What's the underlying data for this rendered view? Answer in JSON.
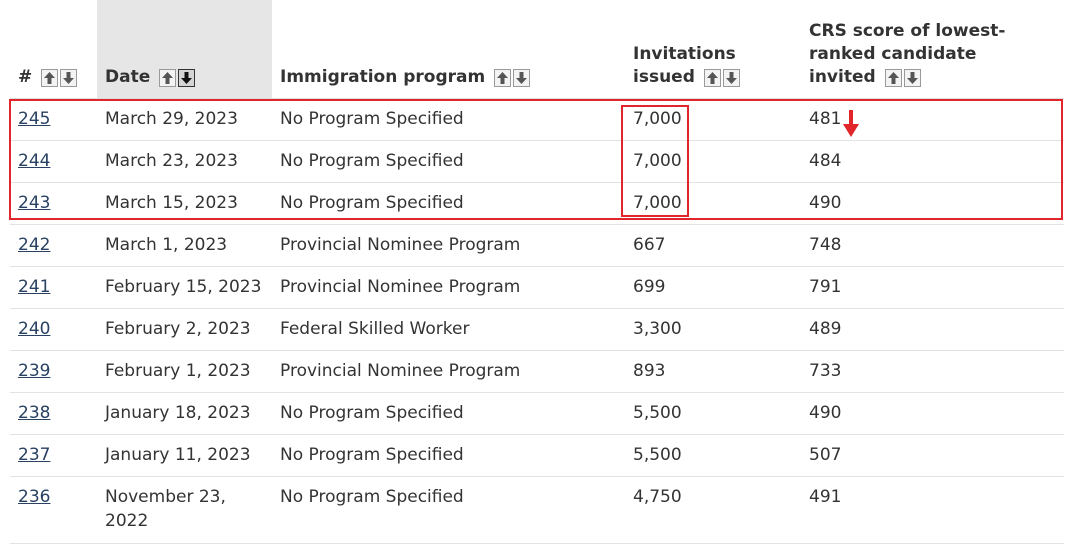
{
  "table": {
    "headers": {
      "num": "#",
      "date": "Date",
      "program": "Immigration program",
      "invitations_line1": "Invitations",
      "invitations_line2": "issued",
      "crs_line1": "CRS score of lowest-",
      "crs_line2": "ranked candidate",
      "crs_line3": "invited"
    },
    "sorted_column": "date",
    "sort_direction": "descending",
    "rows": [
      {
        "num": "245",
        "date": "March 29, 2023",
        "program": "No Program Specified",
        "invitations": "7,000",
        "crs": "481"
      },
      {
        "num": "244",
        "date": "March 23, 2023",
        "program": "No Program Specified",
        "invitations": "7,000",
        "crs": "484"
      },
      {
        "num": "243",
        "date": "March 15, 2023",
        "program": "No Program Specified",
        "invitations": "7,000",
        "crs": "490"
      },
      {
        "num": "242",
        "date": "March 1, 2023",
        "program": "Provincial Nominee Program",
        "invitations": "667",
        "crs": "748"
      },
      {
        "num": "241",
        "date": "February 15, 2023",
        "program": "Provincial Nominee Program",
        "invitations": "699",
        "crs": "791"
      },
      {
        "num": "240",
        "date": "February 2, 2023",
        "program": "Federal Skilled Worker",
        "invitations": "3,300",
        "crs": "489"
      },
      {
        "num": "239",
        "date": "February 1, 2023",
        "program": "Provincial Nominee Program",
        "invitations": "893",
        "crs": "733"
      },
      {
        "num": "238",
        "date": "January 18, 2023",
        "program": "No Program Specified",
        "invitations": "5,500",
        "crs": "490"
      },
      {
        "num": "237",
        "date": "January 11, 2023",
        "program": "No Program Specified",
        "invitations": "5,500",
        "crs": "507"
      },
      {
        "num": "236",
        "date": "November 23, 2022",
        "program": "No Program Specified",
        "invitations": "4,750",
        "crs": "491"
      }
    ]
  },
  "colors": {
    "link": "#284162",
    "highlight": "#e0262b",
    "sorted_header_bg": "#e6e6e6"
  }
}
